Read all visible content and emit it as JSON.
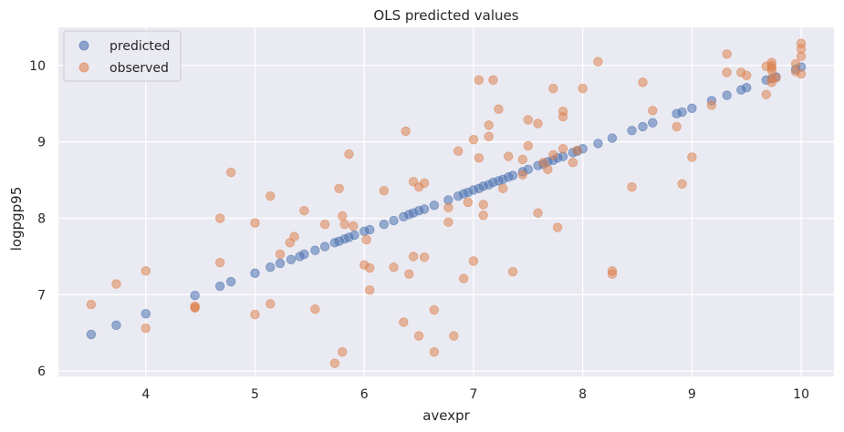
{
  "chart_data": {
    "type": "scatter",
    "title": "OLS predicted values",
    "xlabel": "avexpr",
    "ylabel": "logpgp95",
    "xlim": [
      3.2,
      10.3
    ],
    "ylim": [
      5.93,
      10.5
    ],
    "xticks": [
      4,
      5,
      6,
      7,
      8,
      9,
      10
    ],
    "yticks": [
      6,
      7,
      8,
      9,
      10
    ],
    "grid": true,
    "legend": "top-left",
    "colors": {
      "background": "#eaeaf2",
      "grid": "#ffffff",
      "predicted": "#4c72b0",
      "observed": "#dd8452"
    },
    "series": [
      {
        "name": "predicted",
        "x": [
          3.5,
          3.73,
          4.0,
          4.45,
          4.68,
          4.78,
          5.0,
          5.14,
          5.23,
          5.33,
          5.41,
          5.45,
          5.55,
          5.64,
          5.73,
          5.77,
          5.82,
          5.86,
          5.91,
          6.0,
          6.05,
          6.18,
          6.27,
          6.36,
          6.41,
          6.45,
          6.5,
          6.55,
          6.64,
          6.77,
          6.86,
          6.91,
          6.95,
          7.0,
          7.05,
          7.09,
          7.14,
          7.18,
          7.23,
          7.27,
          7.32,
          7.36,
          7.45,
          7.5,
          7.59,
          7.64,
          7.68,
          7.73,
          7.77,
          7.82,
          7.91,
          7.95,
          8.0,
          8.14,
          8.27,
          8.45,
          8.55,
          8.64,
          8.86,
          8.91,
          9.0,
          9.18,
          9.32,
          9.45,
          9.5,
          9.68,
          9.73,
          9.77,
          9.95,
          10.0
        ],
        "y": [
          6.48,
          6.6,
          6.75,
          6.99,
          7.11,
          7.17,
          7.28,
          7.36,
          7.41,
          7.46,
          7.5,
          7.53,
          7.58,
          7.63,
          7.68,
          7.7,
          7.73,
          7.75,
          7.78,
          7.83,
          7.85,
          7.92,
          7.97,
          8.02,
          8.05,
          8.07,
          8.1,
          8.12,
          8.17,
          8.24,
          8.29,
          8.32,
          8.34,
          8.37,
          8.39,
          8.42,
          8.44,
          8.47,
          8.49,
          8.51,
          8.54,
          8.56,
          8.61,
          8.64,
          8.69,
          8.71,
          8.74,
          8.76,
          8.79,
          8.81,
          8.86,
          8.88,
          8.91,
          8.98,
          9.05,
          9.15,
          9.2,
          9.25,
          9.37,
          9.39,
          9.44,
          9.54,
          9.61,
          9.68,
          9.71,
          9.81,
          9.83,
          9.85,
          9.95,
          9.98
        ]
      },
      {
        "name": "observed",
        "x": [
          3.5,
          3.73,
          4.0,
          4.0,
          4.45,
          4.45,
          4.45,
          4.68,
          4.68,
          4.78,
          5.0,
          5.0,
          5.14,
          5.14,
          5.23,
          5.32,
          5.36,
          5.45,
          5.55,
          5.64,
          5.73,
          5.77,
          5.8,
          5.8,
          5.82,
          5.86,
          5.9,
          6.0,
          6.02,
          6.05,
          6.05,
          6.18,
          6.27,
          6.36,
          6.38,
          6.41,
          6.45,
          6.45,
          6.5,
          6.5,
          6.55,
          6.55,
          6.64,
          6.64,
          6.77,
          6.77,
          6.82,
          6.86,
          6.91,
          6.95,
          7.0,
          7.0,
          7.05,
          7.05,
          7.09,
          7.09,
          7.14,
          7.14,
          7.18,
          7.23,
          7.27,
          7.32,
          7.36,
          7.45,
          7.45,
          7.5,
          7.5,
          7.59,
          7.59,
          7.64,
          7.68,
          7.73,
          7.73,
          7.77,
          7.82,
          7.82,
          7.82,
          7.91,
          7.95,
          8.0,
          8.14,
          8.27,
          8.27,
          8.45,
          8.55,
          8.64,
          8.86,
          8.91,
          9.0,
          9.18,
          9.32,
          9.32,
          9.45,
          9.5,
          9.68,
          9.68,
          9.73,
          9.73,
          9.73,
          9.73,
          9.73,
          9.73,
          9.77,
          9.95,
          9.95,
          10.0,
          10.0,
          10.0,
          10.0
        ],
        "y": [
          6.87,
          7.14,
          7.31,
          6.56,
          6.85,
          6.83,
          6.83,
          8.0,
          7.42,
          8.6,
          7.94,
          6.74,
          8.29,
          6.88,
          7.53,
          7.68,
          7.76,
          8.1,
          6.81,
          7.92,
          6.1,
          8.39,
          8.03,
          6.25,
          7.92,
          8.84,
          7.9,
          7.39,
          7.72,
          7.35,
          7.06,
          8.36,
          7.36,
          6.64,
          9.14,
          7.27,
          8.48,
          7.5,
          8.41,
          6.46,
          8.46,
          7.49,
          6.8,
          6.25,
          7.95,
          8.14,
          6.46,
          8.88,
          7.21,
          8.21,
          9.03,
          7.44,
          9.81,
          8.79,
          8.18,
          8.04,
          9.22,
          9.07,
          9.81,
          9.43,
          8.39,
          8.81,
          7.3,
          8.77,
          8.57,
          9.29,
          8.95,
          9.24,
          8.07,
          8.73,
          8.64,
          9.7,
          8.83,
          7.88,
          9.4,
          9.33,
          8.91,
          8.73,
          8.89,
          9.7,
          10.05,
          7.31,
          7.27,
          8.41,
          9.78,
          9.41,
          9.2,
          8.45,
          8.8,
          9.48,
          10.15,
          9.91,
          9.91,
          9.87,
          9.99,
          9.62,
          10.04,
          10.0,
          9.97,
          9.94,
          9.78,
          9.83,
          9.84,
          10.02,
          9.92,
          10.29,
          10.22,
          10.12,
          9.89
        ]
      }
    ]
  }
}
